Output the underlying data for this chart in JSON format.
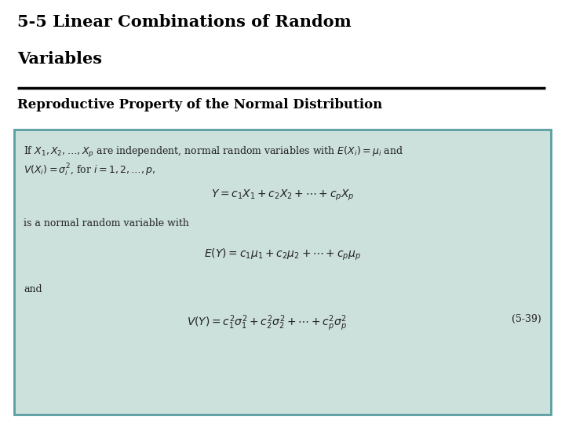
{
  "title_line1": "5-5 Linear Combinations of Random",
  "title_line2": "Variables",
  "subtitle": "Reproductive Property of the Normal Distribution",
  "bg_color": "#ffffff",
  "box_bg_color": "#cce0dc",
  "box_border_color": "#5a9ea0",
  "title_color": "#000000",
  "subtitle_color": "#000000",
  "text_color": "#222222",
  "line1": "If $X_1, X_2, \\ldots, X_p$ are independent, normal random variables with $E(X_i) = \\mu_i$ and",
  "line2": "$V(X_i) = \\sigma_i^2$, for $i = 1, 2, \\ldots, p,$",
  "eq1": "$Y = c_1 X_1 + c_2 X_2 + \\cdots + c_p X_p$",
  "line3": "is a normal random variable with",
  "eq2": "$E(Y) = c_1\\mu_1 + c_2\\mu_2 + \\cdots + c_p\\mu_p$",
  "line4": "and",
  "eq3": "$V(Y) = c_1^2\\sigma_1^2 + c_2^2\\sigma_2^2 + \\cdots + c_p^2\\sigma_p^2$",
  "eq3_label": "(5-39)"
}
